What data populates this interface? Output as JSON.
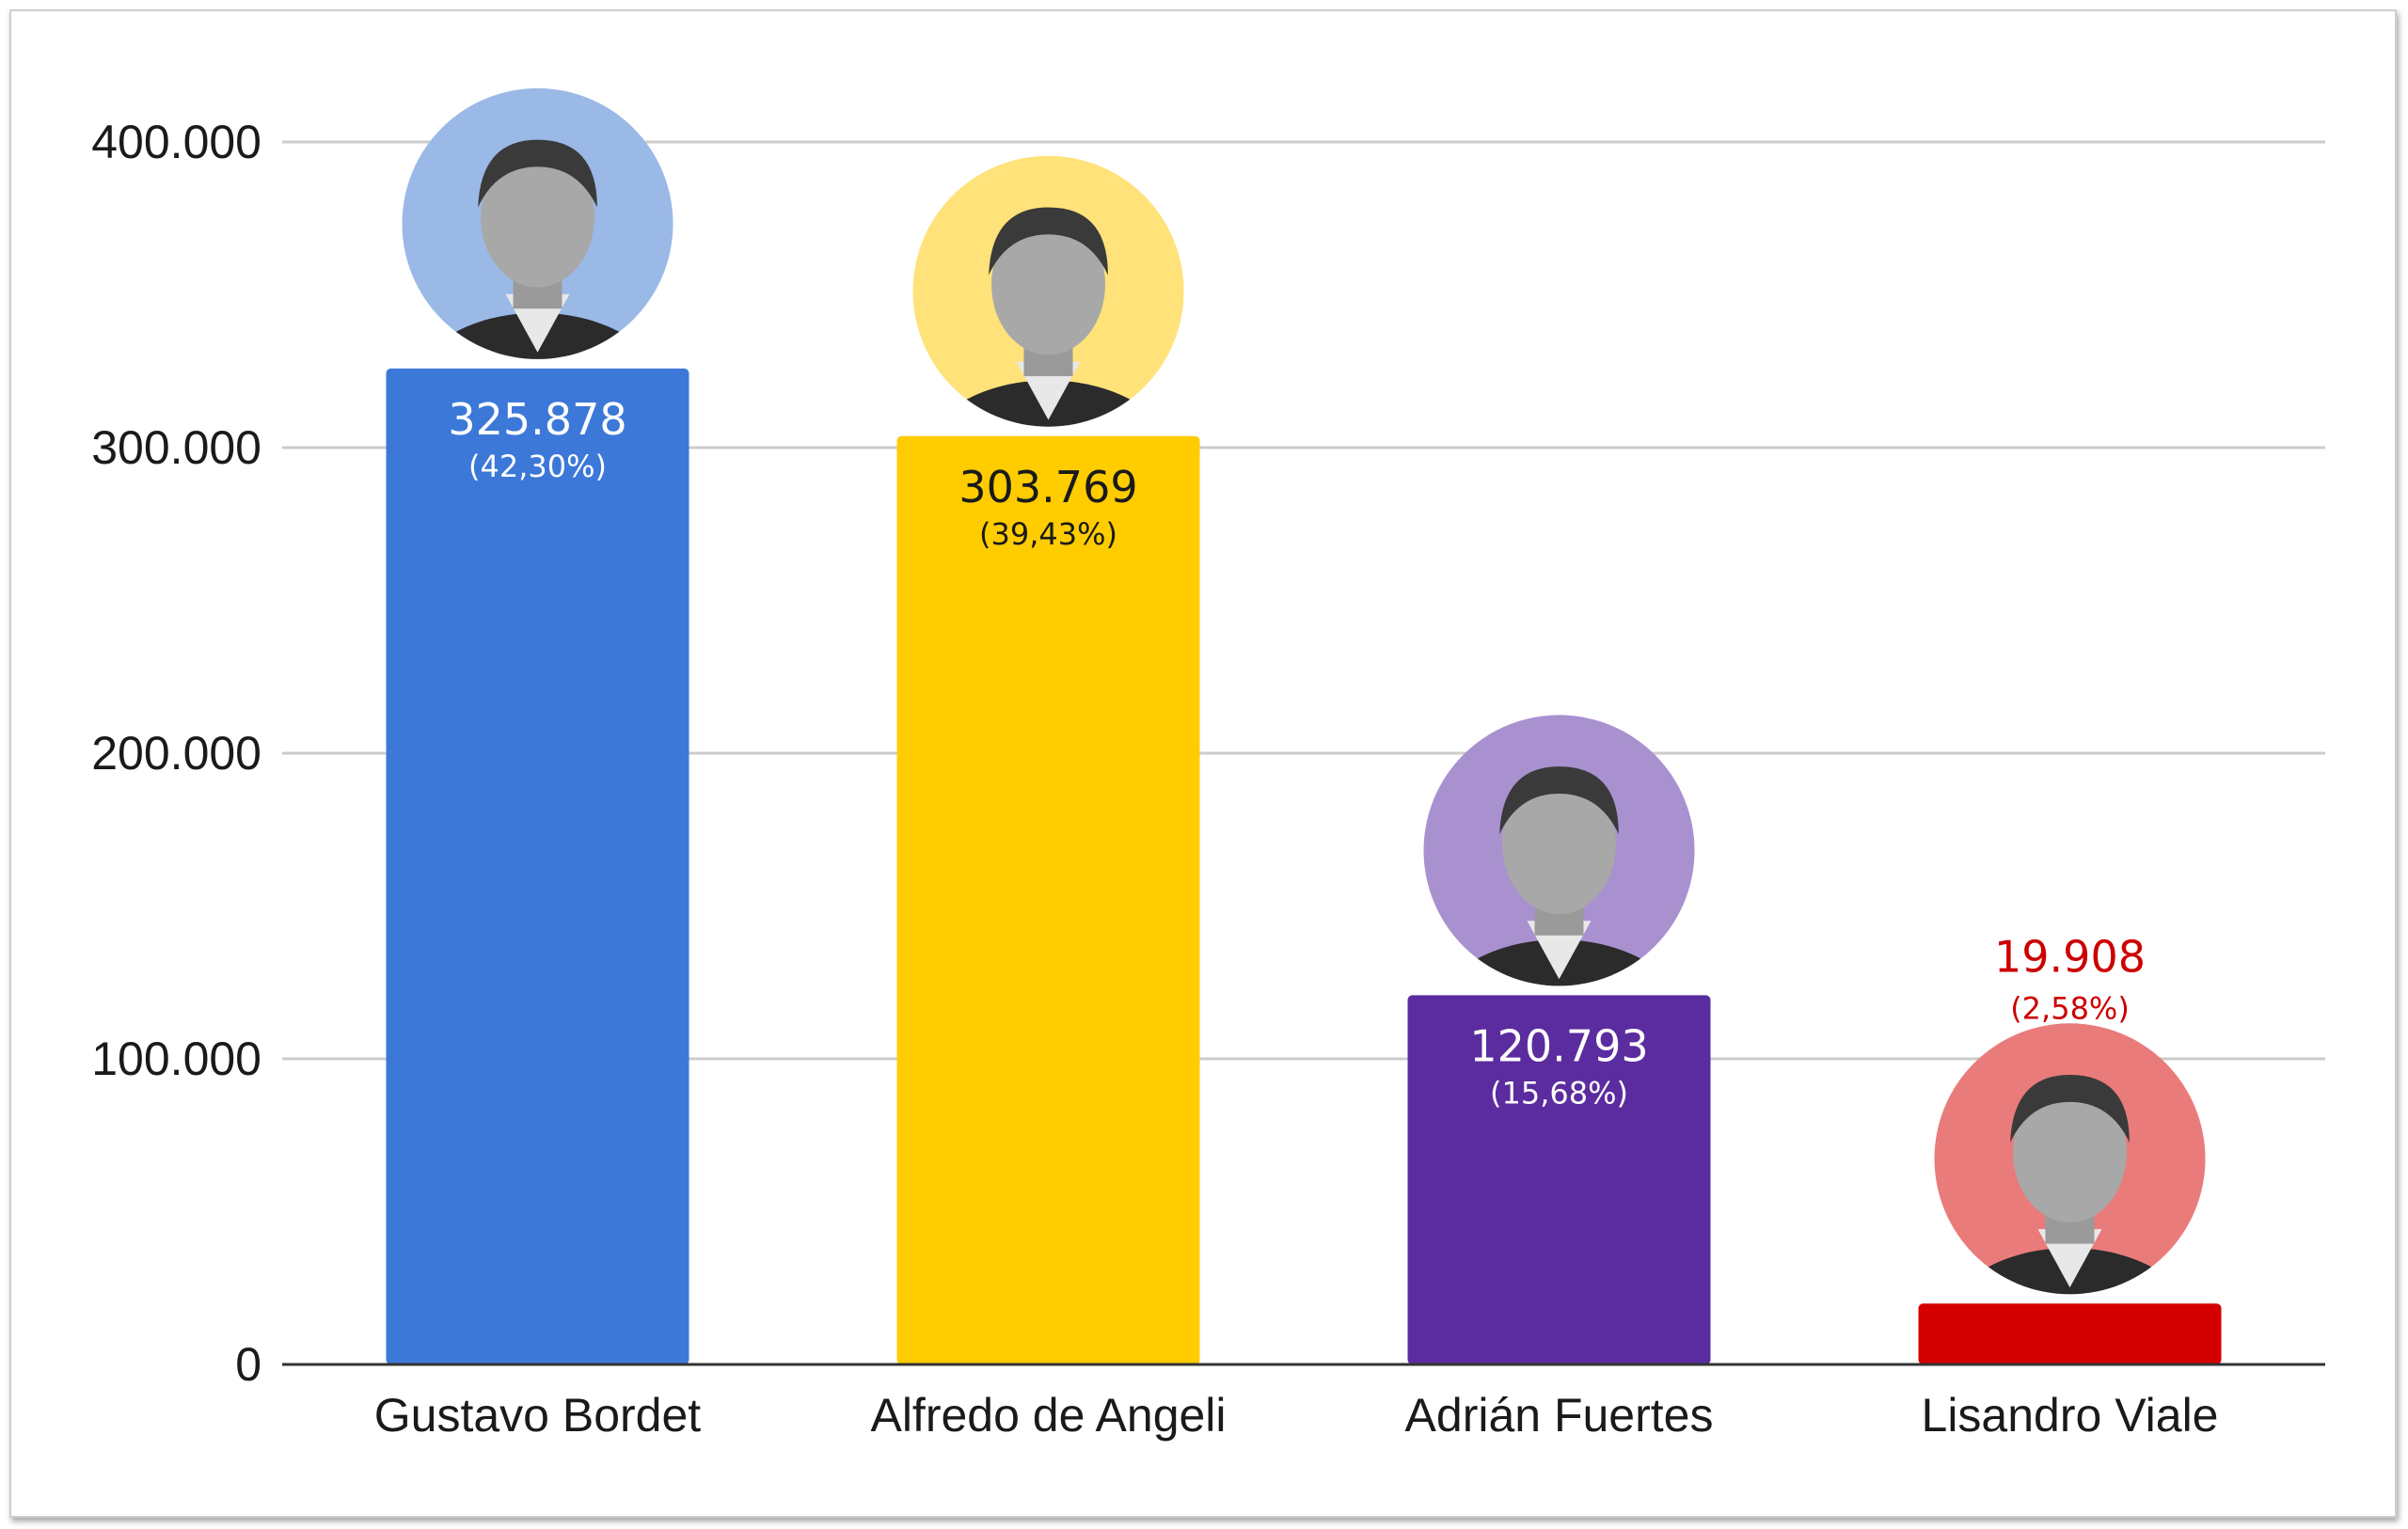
{
  "chart_data": {
    "type": "bar",
    "title": "",
    "xlabel": "",
    "ylabel": "",
    "ylim": [
      0,
      400000
    ],
    "yticks": [
      "0",
      "100.000",
      "200.000",
      "300.000",
      "400.000"
    ],
    "ytick_values": [
      0,
      100000,
      200000,
      300000,
      400000
    ],
    "grid": true,
    "categories": [
      "Gustavo Bordet",
      "Alfredo de Angeli",
      "Adrián Fuertes",
      "Lisandro Viale"
    ],
    "values": [
      325878,
      303769,
      120793,
      19908
    ],
    "value_labels": [
      "325.878",
      "303.769",
      "120.793",
      "19.908"
    ],
    "percent_labels": [
      "(42,30%)",
      "(39,43%)",
      "(15,68%)",
      "(2,58%)"
    ],
    "bar_colors": [
      "#3c78d8",
      "#ffcc00",
      "#5b2c9f",
      "#d40000"
    ],
    "avatar_colors": [
      "#9ab9e6",
      "#ffe27a",
      "#a991d0",
      "#ea7b7b"
    ],
    "label_colors": [
      "#ffffff",
      "#1a1a1a",
      "#ffffff",
      "#cc0000"
    ],
    "avatar_icons": [
      "person-portrait",
      "person-portrait",
      "person-portrait",
      "person-portrait"
    ]
  }
}
